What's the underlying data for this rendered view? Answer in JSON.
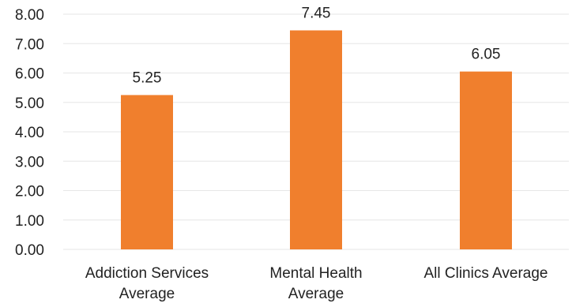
{
  "chart_data": {
    "type": "bar",
    "title": "",
    "xlabel": "",
    "ylabel": "",
    "categories": [
      [
        "Addiction Services",
        "Average"
      ],
      [
        "Mental Health",
        "Average"
      ],
      [
        "All Clinics Average"
      ]
    ],
    "values": [
      5.25,
      7.45,
      6.05
    ],
    "data_labels": [
      "5.25",
      "7.45",
      "6.05"
    ],
    "ylim": [
      0,
      8
    ],
    "yticks": [
      "0.00",
      "1.00",
      "2.00",
      "3.00",
      "4.00",
      "5.00",
      "6.00",
      "7.00",
      "8.00"
    ],
    "grid": true,
    "legend": false,
    "colors": {
      "bar": "#f07f2d",
      "grid": "#e6e6e6",
      "text": "#222222"
    }
  }
}
